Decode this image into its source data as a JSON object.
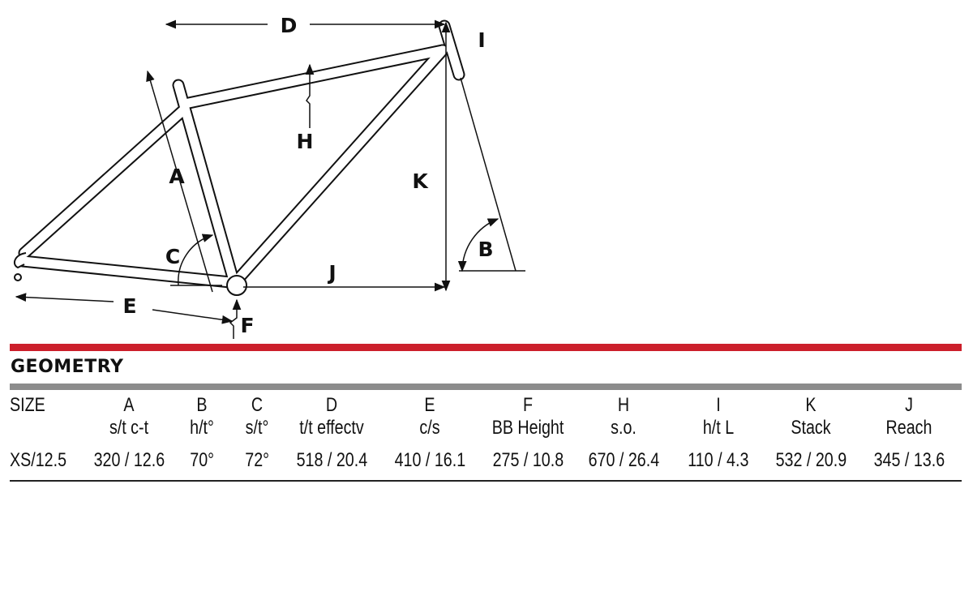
{
  "diagram": {
    "labels": {
      "A": "A",
      "B": "B",
      "C": "C",
      "D": "D",
      "E": "E",
      "F": "F",
      "H": "H",
      "I": "I",
      "J": "J",
      "K": "K"
    }
  },
  "section_title": "GEOMETRY",
  "table": {
    "columns": [
      {
        "code": "SIZE",
        "desc": ""
      },
      {
        "code": "A",
        "desc": "s/t c-t"
      },
      {
        "code": "B",
        "desc": "h/t°"
      },
      {
        "code": "C",
        "desc": "s/t°"
      },
      {
        "code": "D",
        "desc": "t/t effectv"
      },
      {
        "code": "E",
        "desc": "c/s"
      },
      {
        "code": "F",
        "desc": "BB Height"
      },
      {
        "code": "H",
        "desc": "s.o."
      },
      {
        "code": "I",
        "desc": "h/t L"
      },
      {
        "code": "K",
        "desc": "Stack"
      },
      {
        "code": "J",
        "desc": "Reach"
      }
    ],
    "rows": [
      [
        "XS/12.5",
        "320 / 12.6",
        "70°",
        "72°",
        "518 / 20.4",
        "410 / 16.1",
        "275 / 10.8",
        "670 / 26.4",
        "110 / 4.3",
        "532 / 20.9",
        "345 / 13.6"
      ]
    ]
  },
  "colors": {
    "accent_red": "#cc1f2b",
    "divider_grey": "#8c8c8c"
  }
}
